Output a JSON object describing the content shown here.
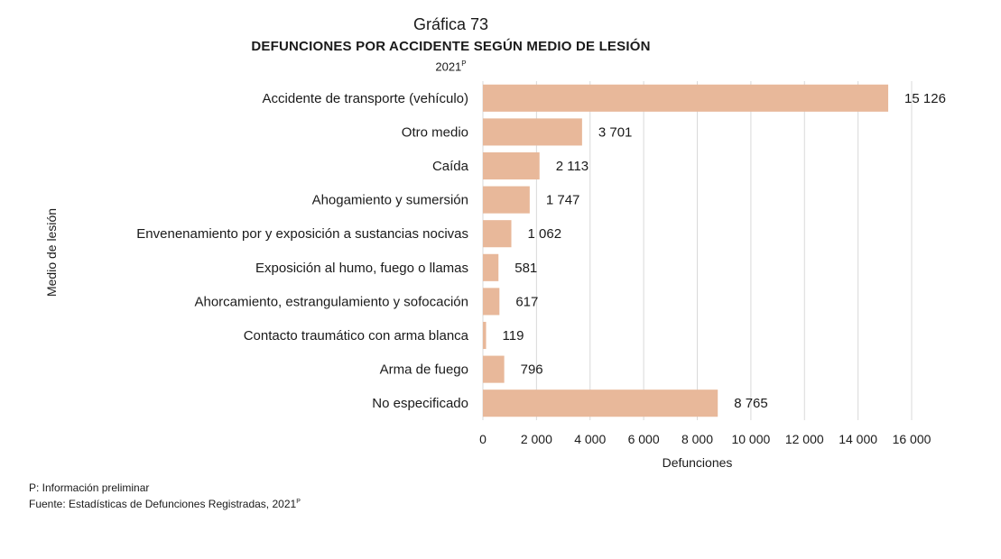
{
  "chart_data": {
    "type": "bar",
    "orientation": "horizontal",
    "label": "Gráfica 73",
    "title": "DEFUNCIONES POR ACCIDENTE SEGÚN MEDIO DE LESIÓN",
    "subtitle": "2021",
    "subtitle_superscript": "P",
    "xlabel": "Defunciones",
    "ylabel": "Medio de lesión",
    "xlim": [
      0,
      16000
    ],
    "xticks": [
      0,
      2000,
      4000,
      6000,
      8000,
      10000,
      12000,
      14000,
      16000
    ],
    "xtick_labels": [
      "0",
      "2 000",
      "4 000",
      "6 000",
      "8 000",
      "10 000",
      "12 000",
      "14 000",
      "16 000"
    ],
    "categories": [
      "Accidente de transporte (vehículo)",
      "Otro medio",
      "Caída",
      "Ahogamiento y sumersión",
      "Envenenamiento por y exposición a sustancias nocivas",
      "Exposición al humo, fuego o llamas",
      "Ahorcamiento, estrangulamiento y sofocación",
      "Contacto traumático con arma blanca",
      "Arma de fuego",
      "No especificado"
    ],
    "values": [
      15126,
      3701,
      2113,
      1747,
      1062,
      581,
      617,
      119,
      796,
      8765
    ],
    "value_labels": [
      "15 126",
      "3 701",
      "2 113",
      "1 747",
      "1 062",
      "581",
      "617",
      "119",
      "796",
      "8 765"
    ],
    "grid": true,
    "legend": false,
    "bar_color": "#e8b89a",
    "grid_color": "#d9d9d9"
  },
  "notes": {
    "preliminary": "P: Información preliminar",
    "source": "Fuente: Estadísticas de Defunciones Registradas, 2021",
    "source_superscript": "P"
  }
}
